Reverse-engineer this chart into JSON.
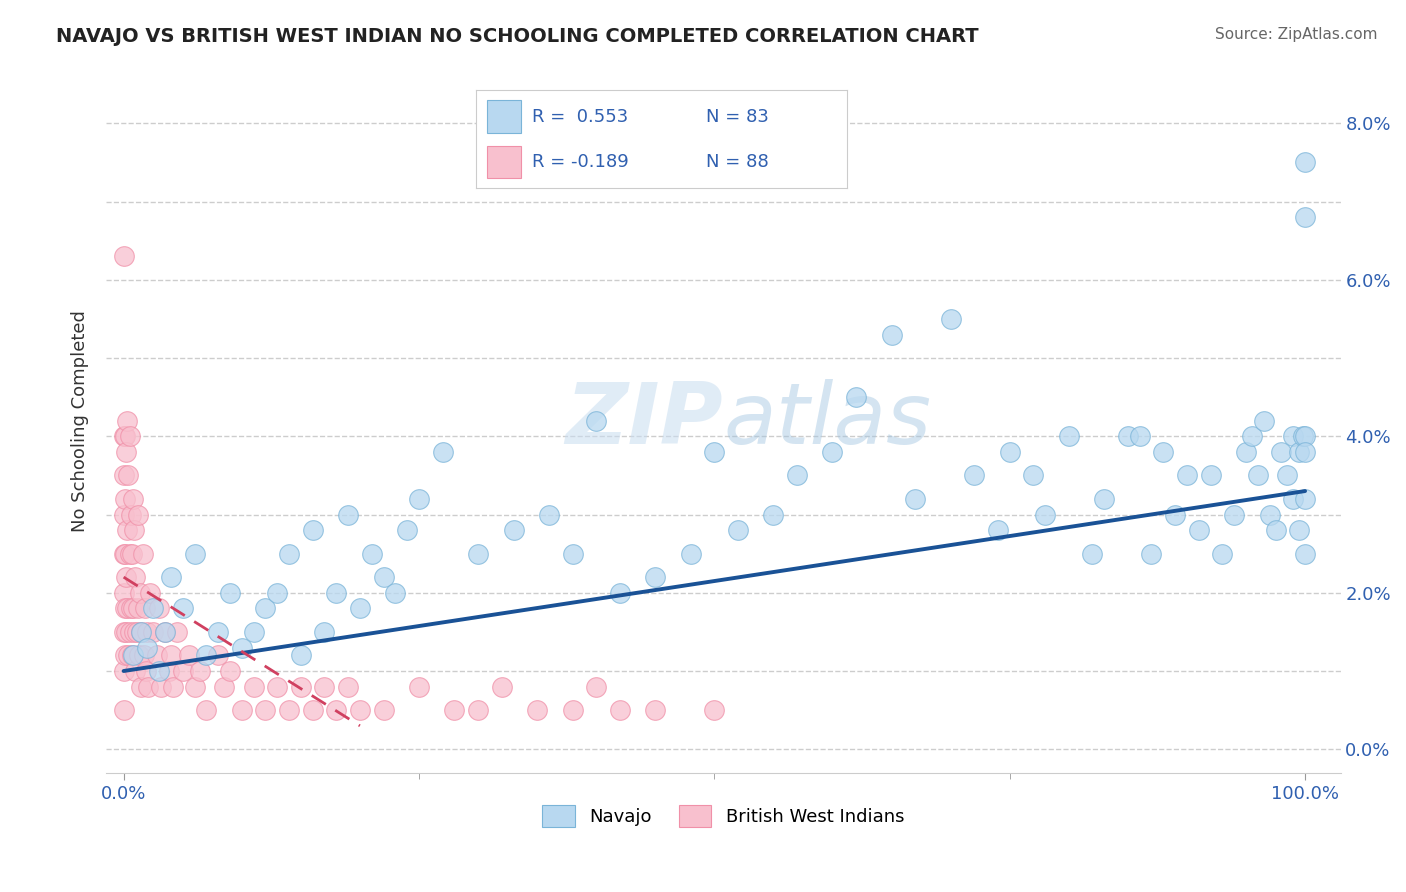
{
  "title": "NAVAJO VS BRITISH WEST INDIAN NO SCHOOLING COMPLETED CORRELATION CHART",
  "source": "Source: ZipAtlas.com",
  "ylabel": "No Schooling Completed",
  "blue_color": "#7ab4d8",
  "pink_color": "#f090a8",
  "blue_fill": "#b8d8f0",
  "pink_fill": "#f8c0ce",
  "trend_blue": "#1a5296",
  "trend_pink": "#d04060",
  "background": "#ffffff",
  "grid_color": "#c8c8c8",
  "ytick_color": "#3060b0",
  "xtick_color": "#3060b0",
  "navajo_x": [
    0.8,
    1.5,
    2.0,
    2.5,
    3.0,
    3.5,
    4.0,
    5.0,
    6.0,
    7.0,
    8.0,
    9.0,
    10.0,
    11.0,
    12.0,
    13.0,
    14.0,
    15.0,
    16.0,
    17.0,
    18.0,
    19.0,
    20.0,
    21.0,
    22.0,
    23.0,
    24.0,
    25.0,
    27.0,
    30.0,
    33.0,
    36.0,
    38.0,
    40.0,
    42.0,
    45.0,
    48.0,
    50.0,
    52.0,
    55.0,
    57.0,
    60.0,
    62.0,
    65.0,
    67.0,
    70.0,
    72.0,
    74.0,
    75.0,
    77.0,
    78.0,
    80.0,
    82.0,
    83.0,
    85.0,
    86.0,
    87.0,
    88.0,
    89.0,
    90.0,
    91.0,
    92.0,
    93.0,
    94.0,
    95.0,
    95.5,
    96.0,
    96.5,
    97.0,
    97.5,
    98.0,
    98.5,
    99.0,
    99.0,
    99.5,
    99.5,
    99.8,
    100.0,
    100.0,
    100.0,
    100.0,
    100.0,
    100.0
  ],
  "navajo_y": [
    1.2,
    1.5,
    1.3,
    1.8,
    1.0,
    1.5,
    2.2,
    1.8,
    2.5,
    1.2,
    1.5,
    2.0,
    1.3,
    1.5,
    1.8,
    2.0,
    2.5,
    1.2,
    2.8,
    1.5,
    2.0,
    3.0,
    1.8,
    2.5,
    2.2,
    2.0,
    2.8,
    3.2,
    3.8,
    2.5,
    2.8,
    3.0,
    2.5,
    4.2,
    2.0,
    2.2,
    2.5,
    3.8,
    2.8,
    3.0,
    3.5,
    3.8,
    4.5,
    5.3,
    3.2,
    5.5,
    3.5,
    2.8,
    3.8,
    3.5,
    3.0,
    4.0,
    2.5,
    3.2,
    4.0,
    4.0,
    2.5,
    3.8,
    3.0,
    3.5,
    2.8,
    3.5,
    2.5,
    3.0,
    3.8,
    4.0,
    3.5,
    4.2,
    3.0,
    2.8,
    3.8,
    3.5,
    4.0,
    3.2,
    3.8,
    2.8,
    4.0,
    4.0,
    3.8,
    2.5,
    3.2,
    6.8,
    7.5
  ],
  "bwi_x": [
    0.0,
    0.0,
    0.0,
    0.0,
    0.0,
    0.0,
    0.0,
    0.0,
    0.0,
    0.1,
    0.1,
    0.1,
    0.1,
    0.1,
    0.2,
    0.2,
    0.2,
    0.3,
    0.3,
    0.3,
    0.4,
    0.4,
    0.5,
    0.5,
    0.5,
    0.6,
    0.6,
    0.7,
    0.7,
    0.8,
    0.8,
    0.9,
    0.9,
    1.0,
    1.0,
    1.1,
    1.2,
    1.2,
    1.3,
    1.4,
    1.5,
    1.5,
    1.6,
    1.7,
    1.8,
    1.9,
    2.0,
    2.1,
    2.2,
    2.5,
    2.8,
    3.0,
    3.2,
    3.5,
    3.8,
    4.0,
    4.2,
    4.5,
    5.0,
    5.5,
    6.0,
    6.5,
    7.0,
    8.0,
    8.5,
    9.0,
    10.0,
    11.0,
    12.0,
    13.0,
    14.0,
    15.0,
    16.0,
    17.0,
    18.0,
    19.0,
    20.0,
    22.0,
    25.0,
    28.0,
    30.0,
    32.0,
    35.0,
    38.0,
    40.0,
    42.0,
    45.0,
    50.0
  ],
  "bwi_y": [
    0.5,
    1.0,
    1.5,
    2.0,
    2.5,
    3.0,
    3.5,
    4.0,
    6.3,
    1.2,
    1.8,
    2.5,
    3.2,
    4.0,
    1.5,
    2.2,
    3.8,
    1.8,
    2.8,
    4.2,
    1.2,
    3.5,
    1.5,
    2.5,
    4.0,
    1.8,
    3.0,
    1.2,
    2.5,
    1.8,
    3.2,
    1.5,
    2.8,
    1.0,
    2.2,
    1.5,
    1.8,
    3.0,
    1.2,
    2.0,
    0.8,
    1.5,
    2.5,
    1.2,
    1.8,
    1.0,
    1.5,
    0.8,
    2.0,
    1.5,
    1.2,
    1.8,
    0.8,
    1.5,
    1.0,
    1.2,
    0.8,
    1.5,
    1.0,
    1.2,
    0.8,
    1.0,
    0.5,
    1.2,
    0.8,
    1.0,
    0.5,
    0.8,
    0.5,
    0.8,
    0.5,
    0.8,
    0.5,
    0.8,
    0.5,
    0.8,
    0.5,
    0.5,
    0.8,
    0.5,
    0.5,
    0.8,
    0.5,
    0.5,
    0.8,
    0.5,
    0.5,
    0.5
  ],
  "navajo_trend_x": [
    0.0,
    100.0
  ],
  "navajo_trend_y": [
    1.0,
    3.3
  ],
  "bwi_trend_x": [
    0.0,
    20.0
  ],
  "bwi_trend_y": [
    2.2,
    0.3
  ],
  "xlim": [
    -1.5,
    103
  ],
  "ylim": [
    -0.3,
    8.7
  ],
  "yticks": [
    0.0,
    2.0,
    4.0,
    6.0,
    8.0
  ],
  "xticks": [
    0.0,
    100.0
  ],
  "xtick_minor": [
    25.0,
    50.0,
    75.0
  ],
  "watermark": "ZIPatlas",
  "watermark_zip": "ZIP",
  "watermark_atlas": "atlas"
}
